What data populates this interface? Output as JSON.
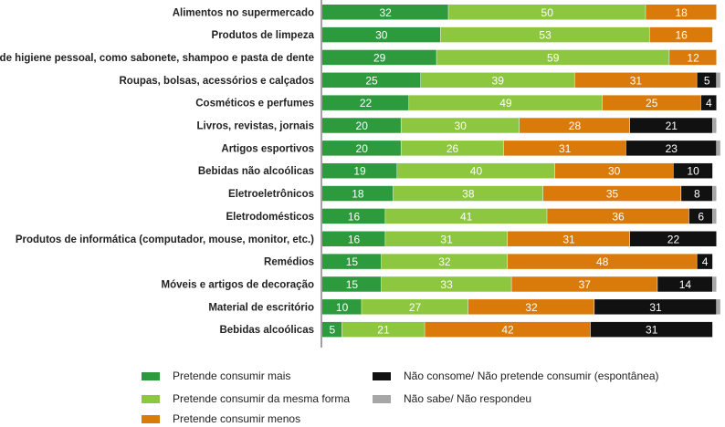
{
  "chart_data": {
    "type": "bar",
    "orientation": "horizontal",
    "stacked": true,
    "categories": [
      "Alimentos no supermercado",
      "Produtos de limpeza",
      "Produtos de higiene pessoal, como sabonete, shampoo e pasta de dente",
      "Roupas, bolsas, acessórios e calçados",
      "Cosméticos e perfumes",
      "Livros, revistas, jornais",
      "Artigos esportivos",
      "Bebidas não alcoólicas",
      "Eletroeletrônicos",
      "Eletrodomésticos",
      "Produtos de informática (computador, mouse, monitor, etc.)",
      "Remédios",
      "Móveis e artigos de decoração",
      "Material de escritório",
      "Bebidas alcoólicas"
    ],
    "series": [
      {
        "name": "Pretende consumir mais",
        "color": "#2e9a3e",
        "label_color": "#ffffff",
        "values": [
          32,
          30,
          29,
          25,
          22,
          20,
          20,
          19,
          18,
          16,
          16,
          15,
          15,
          10,
          5
        ]
      },
      {
        "name": "Pretende consumir da mesma forma",
        "color": "#8dc63f",
        "label_color": "#ffffff",
        "values": [
          50,
          53,
          59,
          39,
          49,
          30,
          26,
          40,
          38,
          41,
          31,
          32,
          33,
          27,
          21
        ]
      },
      {
        "name": "Pretende consumir menos",
        "color": "#d97a0b",
        "label_color": "#ffffff",
        "values": [
          18,
          16,
          12,
          31,
          25,
          28,
          31,
          30,
          35,
          36,
          31,
          48,
          37,
          32,
          42
        ]
      },
      {
        "name": "Não consome/ Não pretende consumir (espontânea)",
        "color": "#111111",
        "label_color": "#ffffff",
        "values": [
          0,
          0,
          0,
          5,
          4,
          21,
          23,
          10,
          8,
          6,
          22,
          4,
          14,
          31,
          31
        ]
      },
      {
        "name": "Não sabe/ Não respondeu",
        "color": "#a6a6a6",
        "label_color": "#ffffff",
        "values": [
          0,
          0,
          0,
          1,
          0,
          1,
          1,
          0,
          1,
          1,
          0,
          0,
          1,
          1,
          0
        ]
      }
    ],
    "xlim": [
      0,
      100
    ],
    "legend_position": "bottom",
    "grid": false
  }
}
